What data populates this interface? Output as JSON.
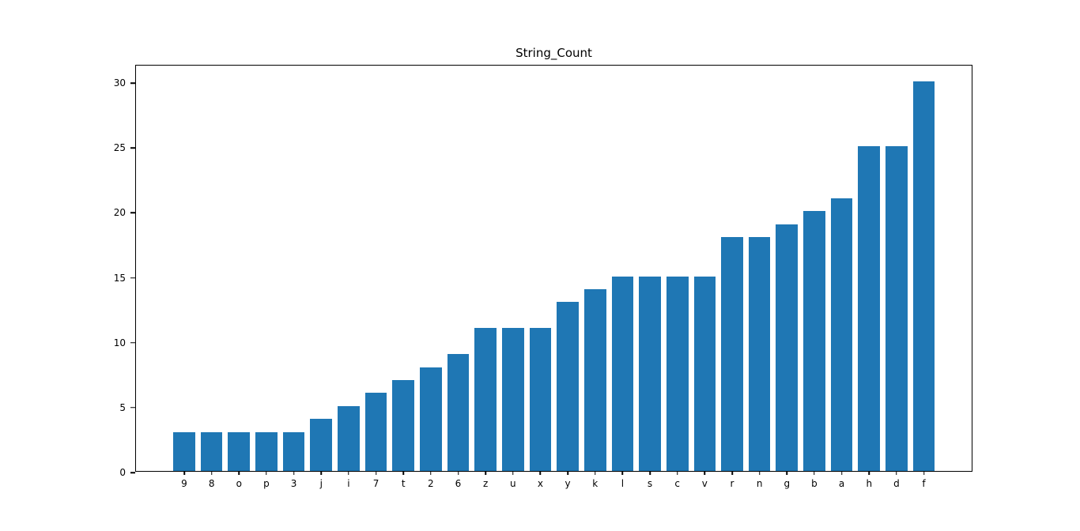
{
  "chart_data": {
    "type": "bar",
    "title": "String_Count",
    "categories": [
      "9",
      "8",
      "o",
      "p",
      "3",
      "j",
      "i",
      "7",
      "t",
      "2",
      "6",
      "z",
      "u",
      "x",
      "y",
      "k",
      "l",
      "s",
      "c",
      "v",
      "r",
      "n",
      "g",
      "b",
      "a",
      "h",
      "d",
      "f"
    ],
    "values": [
      3,
      3,
      3,
      3,
      3,
      4,
      5,
      6,
      7,
      8,
      9,
      11,
      11,
      11,
      13,
      14,
      15,
      15,
      15,
      15,
      18,
      18,
      19,
      20,
      21,
      25,
      25,
      30
    ],
    "xlabel": "",
    "ylabel": "",
    "ylim": [
      0,
      31.35
    ],
    "yticks": [
      0,
      5,
      10,
      15,
      20,
      25,
      30
    ],
    "bar_color": "#1f77b4",
    "axis_color": "#000000",
    "background_color": "#ffffff",
    "grid": false,
    "legend": null
  }
}
